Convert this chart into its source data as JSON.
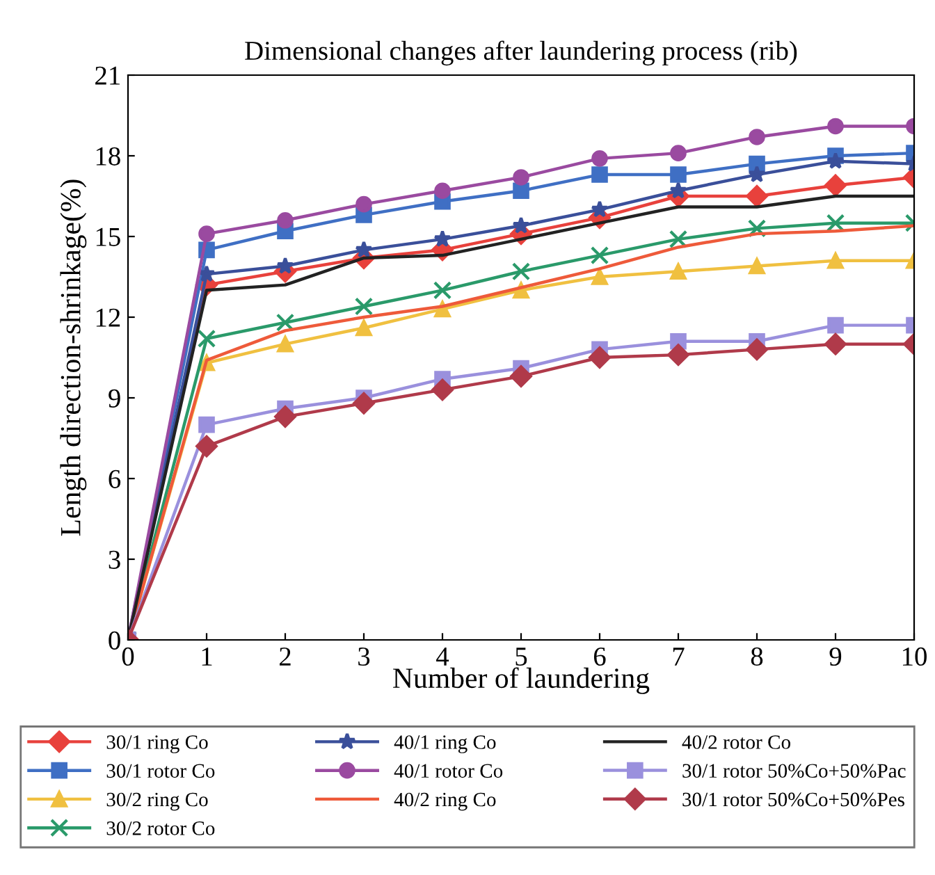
{
  "chart_data": {
    "type": "line",
    "title": "Dimensional changes after laundering process (rib)",
    "xlabel": "Number of laundering",
    "ylabel": "Length direction-shrinkage(%)",
    "x": [
      0,
      1,
      2,
      3,
      4,
      5,
      6,
      7,
      8,
      9,
      10
    ],
    "xlim": [
      0,
      10
    ],
    "xticks": [
      0,
      1,
      2,
      3,
      4,
      5,
      6,
      7,
      8,
      9,
      10
    ],
    "ylim": [
      0,
      21
    ],
    "yticks": [
      0,
      3,
      6,
      9,
      12,
      15,
      18,
      21
    ],
    "grid": false,
    "legend": "bottom",
    "series": [
      {
        "name": "30/1 ring Co",
        "color": "#e8413c",
        "marker": "diamond",
        "values": [
          0,
          13.2,
          13.7,
          14.2,
          14.5,
          15.1,
          15.7,
          16.5,
          16.5,
          16.9,
          17.2
        ]
      },
      {
        "name": "30/1 rotor Co",
        "color": "#3f6fc4",
        "marker": "square",
        "values": [
          0,
          14.5,
          15.2,
          15.8,
          16.3,
          16.7,
          17.3,
          17.3,
          17.7,
          18.0,
          18.1
        ]
      },
      {
        "name": "30/2 ring Co",
        "color": "#f0c040",
        "marker": "triangle",
        "values": [
          0,
          10.3,
          11.0,
          11.6,
          12.3,
          13.0,
          13.5,
          13.7,
          13.9,
          14.1,
          14.1
        ]
      },
      {
        "name": "30/2 rotor Co",
        "color": "#2a9a6a",
        "marker": "cross",
        "values": [
          0,
          11.2,
          11.8,
          12.4,
          13.0,
          13.7,
          14.3,
          14.9,
          15.3,
          15.5,
          15.5
        ]
      },
      {
        "name": "40/1 ring Co",
        "color": "#3a4f9a",
        "marker": "star",
        "values": [
          0,
          13.6,
          13.9,
          14.5,
          14.9,
          15.4,
          16.0,
          16.7,
          17.3,
          17.8,
          17.7
        ]
      },
      {
        "name": "40/1 rotor Co",
        "color": "#9a4aa0",
        "marker": "circle",
        "values": [
          0,
          15.1,
          15.6,
          16.2,
          16.7,
          17.2,
          17.9,
          18.1,
          18.7,
          19.1,
          19.1
        ]
      },
      {
        "name": "40/2 ring Co",
        "color": "#ee5a3a",
        "marker": "none",
        "values": [
          0,
          10.4,
          11.5,
          12.0,
          12.4,
          13.1,
          13.8,
          14.6,
          15.1,
          15.2,
          15.4
        ]
      },
      {
        "name": "40/2 rotor Co",
        "color": "#222222",
        "marker": "none",
        "values": [
          0,
          13.0,
          13.2,
          14.2,
          14.3,
          14.9,
          15.5,
          16.1,
          16.1,
          16.5,
          16.5
        ]
      },
      {
        "name": "30/1 rotor 50%Co+50%Pac",
        "color": "#9a90dd",
        "marker": "square",
        "values": [
          0,
          8.0,
          8.6,
          9.0,
          9.7,
          10.1,
          10.8,
          11.1,
          11.1,
          11.7,
          11.7
        ]
      },
      {
        "name": "30/1 rotor 50%Co+50%Pes",
        "color": "#b03a4a",
        "marker": "diamond",
        "values": [
          0,
          7.2,
          8.3,
          8.8,
          9.3,
          9.8,
          10.5,
          10.6,
          10.8,
          11.0,
          11.0
        ]
      }
    ]
  }
}
